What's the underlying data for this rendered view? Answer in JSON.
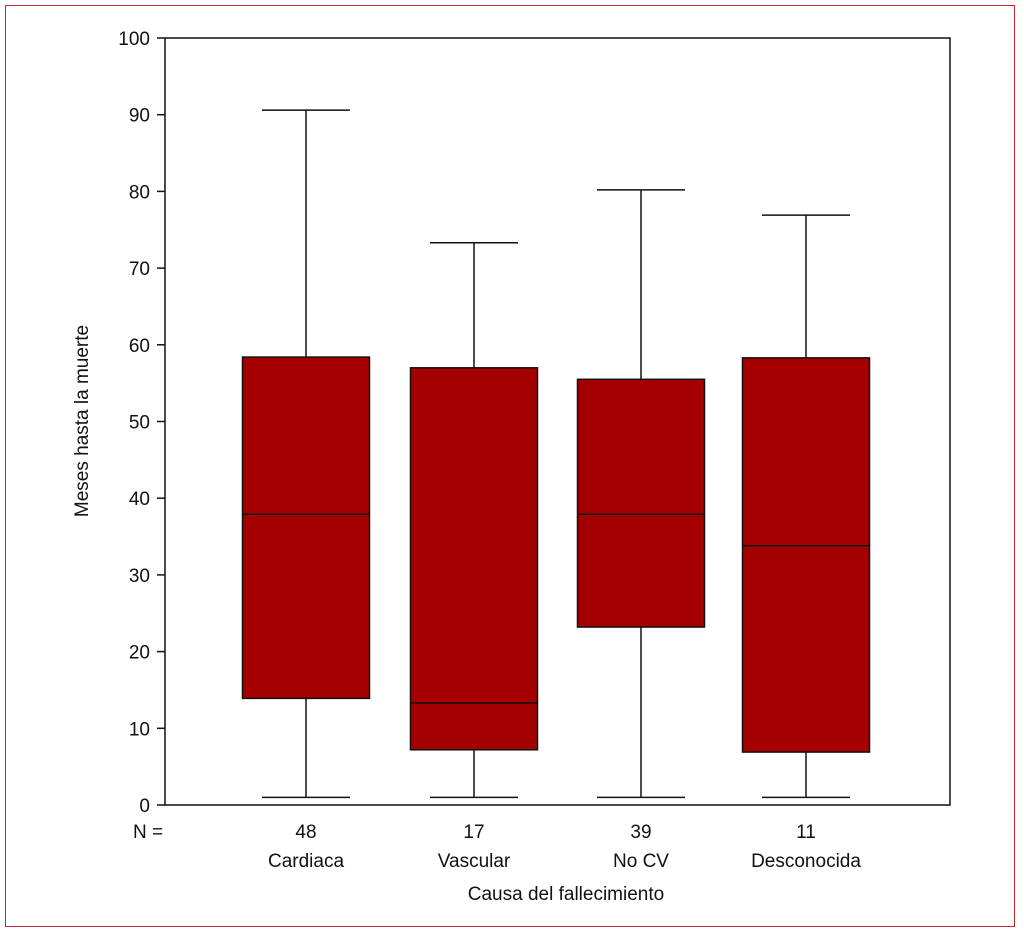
{
  "chart_data": {
    "type": "boxplot",
    "title": "",
    "xlabel": "Causa del fallecimiento",
    "ylabel": "Meses hasta la muerte",
    "ylim": [
      0,
      100
    ],
    "yticks": [
      0,
      10,
      20,
      30,
      40,
      50,
      60,
      70,
      80,
      90,
      100
    ],
    "n_label": "N =",
    "box_color": "#a50000",
    "categories": [
      "Cardiaca",
      "Vascular",
      "No CV",
      "Desconocida"
    ],
    "n": [
      "48",
      "17",
      "39",
      "11"
    ],
    "boxes": [
      {
        "min": 1,
        "q1": 13.9,
        "median": 37.9,
        "q3": 58.4,
        "max": 90.6
      },
      {
        "min": 1,
        "q1": 7.2,
        "median": 13.3,
        "q3": 57.0,
        "max": 73.3
      },
      {
        "min": 1,
        "q1": 23.2,
        "median": 37.9,
        "q3": 55.5,
        "max": 80.2
      },
      {
        "min": 1,
        "q1": 6.9,
        "median": 33.8,
        "q3": 58.3,
        "max": 76.9
      }
    ]
  }
}
